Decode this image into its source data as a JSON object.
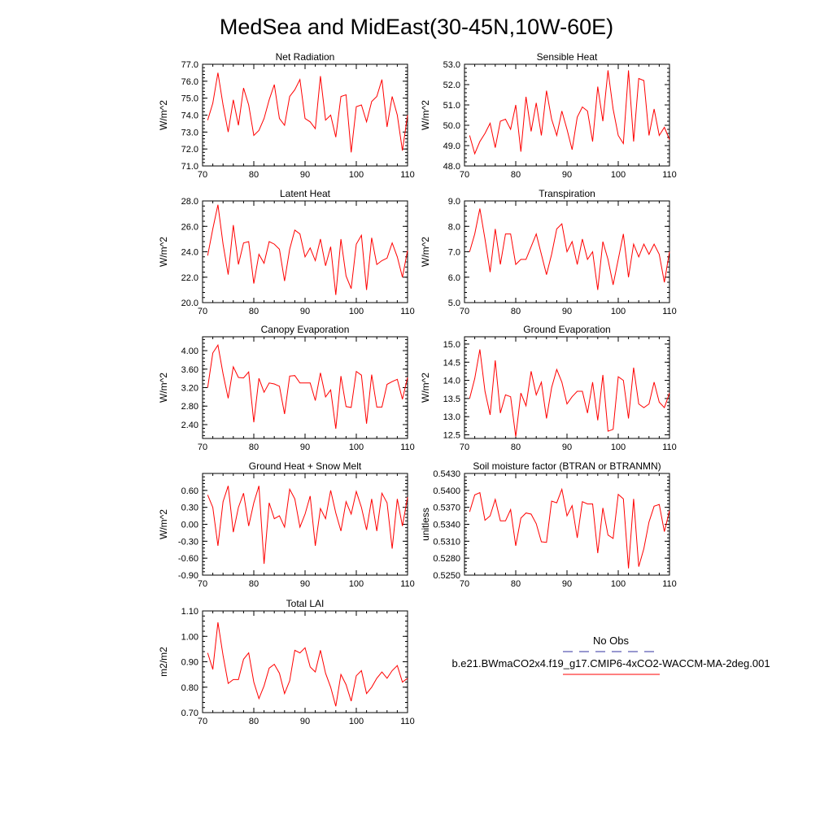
{
  "title": "MedSea and MidEast(30-45N,10W-60E)",
  "colors": {
    "model": "#ff0000",
    "obs": "#3030a0",
    "axis": "#000000"
  },
  "legend": {
    "obs_label": "No Obs",
    "model_label": "b.e21.BWmaCO2x4.f19_g17.CMIP6-4xCO2-WACCM-MA-2deg.001"
  },
  "chart_data": [
    {
      "type": "line",
      "title": "Net Radiation",
      "xlabel": "",
      "ylabel": "W/m^2",
      "xlim": [
        70,
        110
      ],
      "ylim": [
        71,
        77
      ],
      "xticks": [
        "70",
        "80",
        "90",
        "100",
        "110"
      ],
      "yticks": [
        "71.0",
        "72.0",
        "73.0",
        "74.0",
        "75.0",
        "76.0",
        "77.0"
      ],
      "x": [
        71,
        72,
        73,
        74,
        75,
        76,
        77,
        78,
        79,
        80,
        81,
        82,
        83,
        84,
        85,
        86,
        87,
        88,
        89,
        90,
        91,
        92,
        93,
        94,
        95,
        96,
        97,
        98,
        99,
        100,
        101,
        102,
        103,
        104,
        105,
        106,
        107,
        108,
        109,
        110
      ],
      "series": [
        {
          "name": "model",
          "values": [
            73.7,
            74.7,
            76.5,
            74.6,
            73.0,
            74.9,
            73.4,
            75.6,
            74.6,
            72.8,
            73.1,
            73.8,
            74.9,
            75.8,
            73.8,
            73.4,
            75.1,
            75.5,
            76.1,
            73.8,
            73.6,
            73.2,
            76.3,
            73.7,
            74.0,
            72.7,
            75.1,
            75.2,
            71.8,
            74.5,
            74.6,
            73.6,
            74.8,
            75.1,
            76.1,
            73.3,
            75.1,
            74.0,
            71.9,
            74.0
          ]
        }
      ]
    },
    {
      "type": "line",
      "title": "Sensible Heat",
      "xlabel": "",
      "ylabel": "W/m^2",
      "xlim": [
        70,
        110
      ],
      "ylim": [
        48,
        53
      ],
      "xticks": [
        "70",
        "80",
        "90",
        "100",
        "110"
      ],
      "yticks": [
        "48.0",
        "49.0",
        "50.0",
        "51.0",
        "52.0",
        "53.0"
      ],
      "x": [
        71,
        72,
        73,
        74,
        75,
        76,
        77,
        78,
        79,
        80,
        81,
        82,
        83,
        84,
        85,
        86,
        87,
        88,
        89,
        90,
        91,
        92,
        93,
        94,
        95,
        96,
        97,
        98,
        99,
        100,
        101,
        102,
        103,
        104,
        105,
        106,
        107,
        108,
        109,
        110
      ],
      "series": [
        {
          "name": "model",
          "values": [
            49.5,
            48.6,
            49.2,
            49.6,
            50.1,
            48.9,
            50.2,
            50.3,
            49.8,
            51.0,
            48.7,
            51.4,
            49.7,
            51.1,
            49.5,
            51.7,
            50.3,
            49.5,
            50.7,
            49.8,
            48.8,
            50.4,
            50.9,
            50.7,
            49.2,
            51.9,
            50.2,
            52.7,
            50.8,
            49.5,
            49.1,
            52.7,
            49.2,
            52.3,
            52.2,
            49.5,
            50.8,
            49.5,
            49.9,
            49.3
          ]
        }
      ]
    },
    {
      "type": "line",
      "title": "Latent Heat",
      "xlabel": "",
      "ylabel": "W/m^2",
      "xlim": [
        70,
        110
      ],
      "ylim": [
        20,
        28
      ],
      "xticks": [
        "70",
        "80",
        "90",
        "100",
        "110"
      ],
      "yticks": [
        "20.0",
        "22.0",
        "24.0",
        "26.0",
        "28.0"
      ],
      "x": [
        71,
        72,
        73,
        74,
        75,
        76,
        77,
        78,
        79,
        80,
        81,
        82,
        83,
        84,
        85,
        86,
        87,
        88,
        89,
        90,
        91,
        92,
        93,
        94,
        95,
        96,
        97,
        98,
        99,
        100,
        101,
        102,
        103,
        104,
        105,
        106,
        107,
        108,
        109,
        110
      ],
      "series": [
        {
          "name": "model",
          "values": [
            23.7,
            25.8,
            27.7,
            24.6,
            22.2,
            26.1,
            23.0,
            24.7,
            24.8,
            21.5,
            23.8,
            23.1,
            24.8,
            24.6,
            24.2,
            21.7,
            24.2,
            25.7,
            25.4,
            23.6,
            24.3,
            23.3,
            25.0,
            22.9,
            24.4,
            20.6,
            25.0,
            22.1,
            21.1,
            24.6,
            25.3,
            21.0,
            25.1,
            23.0,
            23.3,
            23.5,
            24.7,
            23.6,
            22.0,
            24.1
          ]
        }
      ]
    },
    {
      "type": "line",
      "title": "Transpiration",
      "xlabel": "",
      "ylabel": "W/m^2",
      "xlim": [
        70,
        110
      ],
      "ylim": [
        5,
        9
      ],
      "xticks": [
        "70",
        "80",
        "90",
        "100",
        "110"
      ],
      "yticks": [
        "5.0",
        "6.0",
        "7.0",
        "8.0",
        "9.0"
      ],
      "x": [
        71,
        72,
        73,
        74,
        75,
        76,
        77,
        78,
        79,
        80,
        81,
        82,
        83,
        84,
        85,
        86,
        87,
        88,
        89,
        90,
        91,
        92,
        93,
        94,
        95,
        96,
        97,
        98,
        99,
        100,
        101,
        102,
        103,
        104,
        105,
        106,
        107,
        108,
        109,
        110
      ],
      "series": [
        {
          "name": "model",
          "values": [
            7.0,
            7.7,
            8.7,
            7.5,
            6.2,
            7.9,
            6.5,
            7.7,
            7.7,
            6.5,
            6.7,
            6.7,
            7.2,
            7.7,
            6.9,
            6.1,
            6.9,
            7.9,
            8.1,
            7.0,
            7.4,
            6.5,
            7.5,
            6.7,
            7.0,
            5.5,
            7.4,
            6.7,
            5.7,
            6.7,
            7.7,
            6.0,
            7.3,
            6.8,
            7.3,
            6.9,
            7.3,
            6.9,
            5.8,
            7.0
          ]
        }
      ]
    },
    {
      "type": "line",
      "title": "Canopy Evaporation",
      "xlabel": "",
      "ylabel": "W/m^2",
      "xlim": [
        70,
        110
      ],
      "ylim": [
        2.1,
        4.3
      ],
      "xticks": [
        "70",
        "80",
        "90",
        "100",
        "110"
      ],
      "yticks": [
        "2.40",
        "2.80",
        "3.20",
        "3.60",
        "4.00"
      ],
      "x": [
        71,
        72,
        73,
        74,
        75,
        76,
        77,
        78,
        79,
        80,
        81,
        82,
        83,
        84,
        85,
        86,
        87,
        88,
        89,
        90,
        91,
        92,
        93,
        94,
        95,
        96,
        97,
        98,
        99,
        100,
        101,
        102,
        103,
        104,
        105,
        106,
        107,
        108,
        109,
        110
      ],
      "series": [
        {
          "name": "model",
          "values": [
            3.2,
            3.95,
            4.12,
            3.5,
            2.97,
            3.65,
            3.42,
            3.41,
            3.54,
            2.45,
            3.4,
            3.1,
            3.3,
            3.28,
            3.23,
            2.63,
            3.45,
            3.46,
            3.3,
            3.3,
            3.3,
            2.92,
            3.52,
            3.0,
            3.15,
            2.31,
            3.45,
            2.79,
            2.77,
            3.55,
            3.47,
            2.42,
            3.48,
            2.78,
            2.78,
            3.27,
            3.33,
            3.38,
            2.95,
            3.42
          ]
        }
      ]
    },
    {
      "type": "line",
      "title": "Ground Evaporation",
      "xlabel": "",
      "ylabel": "W/m^2",
      "xlim": [
        70,
        110
      ],
      "ylim": [
        12.4,
        15.2
      ],
      "xticks": [
        "70",
        "80",
        "90",
        "100",
        "110"
      ],
      "yticks": [
        "12.5",
        "13.0",
        "13.5",
        "14.0",
        "14.5",
        "15.0"
      ],
      "x": [
        71,
        72,
        73,
        74,
        75,
        76,
        77,
        78,
        79,
        80,
        81,
        82,
        83,
        84,
        85,
        86,
        87,
        88,
        89,
        90,
        91,
        92,
        93,
        94,
        95,
        96,
        97,
        98,
        99,
        100,
        101,
        102,
        103,
        104,
        105,
        106,
        107,
        108,
        109,
        110
      ],
      "series": [
        {
          "name": "model",
          "values": [
            13.5,
            14.05,
            14.85,
            13.7,
            13.05,
            14.55,
            13.1,
            13.6,
            13.55,
            12.45,
            13.65,
            13.3,
            14.25,
            13.6,
            13.95,
            12.95,
            13.8,
            14.3,
            13.95,
            13.35,
            13.55,
            13.7,
            13.7,
            13.1,
            13.95,
            12.9,
            14.15,
            12.6,
            12.65,
            14.1,
            14.0,
            12.95,
            14.35,
            13.35,
            13.25,
            13.35,
            13.95,
            13.4,
            13.25,
            13.65
          ]
        }
      ]
    },
    {
      "type": "line",
      "title": "Ground Heat + Snow Melt",
      "xlabel": "",
      "ylabel": "W/m^2",
      "xlim": [
        70,
        110
      ],
      "ylim": [
        -0.9,
        0.9
      ],
      "xticks": [
        "70",
        "80",
        "90",
        "100",
        "110"
      ],
      "yticks": [
        "-0.90",
        "-0.60",
        "-0.30",
        "0.00",
        "0.30",
        "0.60"
      ],
      "x": [
        71,
        72,
        73,
        74,
        75,
        76,
        77,
        78,
        79,
        80,
        81,
        82,
        83,
        84,
        85,
        86,
        87,
        88,
        89,
        90,
        91,
        92,
        93,
        94,
        95,
        96,
        97,
        98,
        99,
        100,
        101,
        102,
        103,
        104,
        105,
        106,
        107,
        108,
        109,
        110
      ],
      "series": [
        {
          "name": "model",
          "values": [
            0.52,
            0.3,
            -0.38,
            0.4,
            0.68,
            -0.14,
            0.3,
            0.55,
            -0.03,
            0.38,
            0.68,
            -0.7,
            0.38,
            0.1,
            0.15,
            -0.05,
            0.62,
            0.45,
            -0.05,
            0.18,
            0.5,
            -0.38,
            0.28,
            0.1,
            0.6,
            0.2,
            -0.12,
            0.4,
            0.18,
            0.58,
            0.3,
            -0.1,
            0.45,
            -0.12,
            0.55,
            0.38,
            -0.43,
            0.45,
            -0.03,
            0.48
          ]
        }
      ]
    },
    {
      "type": "line",
      "title": "Soil moisture factor (BTRAN or BTRANMN)",
      "xlabel": "",
      "ylabel": "unitless",
      "xlim": [
        70,
        110
      ],
      "ylim": [
        0.525,
        0.543
      ],
      "xticks": [
        "70",
        "80",
        "90",
        "100",
        "110"
      ],
      "yticks": [
        "0.5250",
        "0.5280",
        "0.5310",
        "0.5340",
        "0.5370",
        "0.5400",
        "0.5430"
      ],
      "x": [
        71,
        72,
        73,
        74,
        75,
        76,
        77,
        78,
        79,
        80,
        81,
        82,
        83,
        84,
        85,
        86,
        87,
        88,
        89,
        90,
        91,
        92,
        93,
        94,
        95,
        96,
        97,
        98,
        99,
        100,
        101,
        102,
        103,
        104,
        105,
        106,
        107,
        108,
        109,
        110
      ],
      "series": [
        {
          "name": "model",
          "values": [
            0.5362,
            0.5392,
            0.5396,
            0.5347,
            0.5355,
            0.5384,
            0.5346,
            0.5346,
            0.5366,
            0.5302,
            0.5351,
            0.536,
            0.5358,
            0.5341,
            0.5309,
            0.5308,
            0.5381,
            0.5378,
            0.5402,
            0.5355,
            0.5373,
            0.5316,
            0.538,
            0.5376,
            0.5376,
            0.5289,
            0.5369,
            0.5321,
            0.5315,
            0.5393,
            0.5385,
            0.5262,
            0.5385,
            0.5265,
            0.5297,
            0.5344,
            0.5372,
            0.5375,
            0.5327,
            0.5364
          ]
        }
      ]
    },
    {
      "type": "line",
      "title": "Total LAI",
      "xlabel": "",
      "ylabel": "m2/m2",
      "xlim": [
        70,
        110
      ],
      "ylim": [
        0.7,
        1.1
      ],
      "xticks": [
        "70",
        "80",
        "90",
        "100",
        "110"
      ],
      "yticks": [
        "0.70",
        "0.80",
        "0.90",
        "1.00",
        "1.10"
      ],
      "x": [
        71,
        72,
        73,
        74,
        75,
        76,
        77,
        78,
        79,
        80,
        81,
        82,
        83,
        84,
        85,
        86,
        87,
        88,
        89,
        90,
        91,
        92,
        93,
        94,
        95,
        96,
        97,
        98,
        99,
        100,
        101,
        102,
        103,
        104,
        105,
        106,
        107,
        108,
        109,
        110
      ],
      "series": [
        {
          "name": "model",
          "values": [
            0.935,
            0.87,
            1.055,
            0.925,
            0.815,
            0.83,
            0.83,
            0.91,
            0.935,
            0.82,
            0.755,
            0.805,
            0.875,
            0.89,
            0.855,
            0.775,
            0.825,
            0.945,
            0.935,
            0.955,
            0.88,
            0.86,
            0.945,
            0.855,
            0.8,
            0.725,
            0.85,
            0.81,
            0.745,
            0.845,
            0.865,
            0.775,
            0.8,
            0.835,
            0.86,
            0.835,
            0.865,
            0.885,
            0.82,
            0.835
          ]
        }
      ]
    }
  ]
}
